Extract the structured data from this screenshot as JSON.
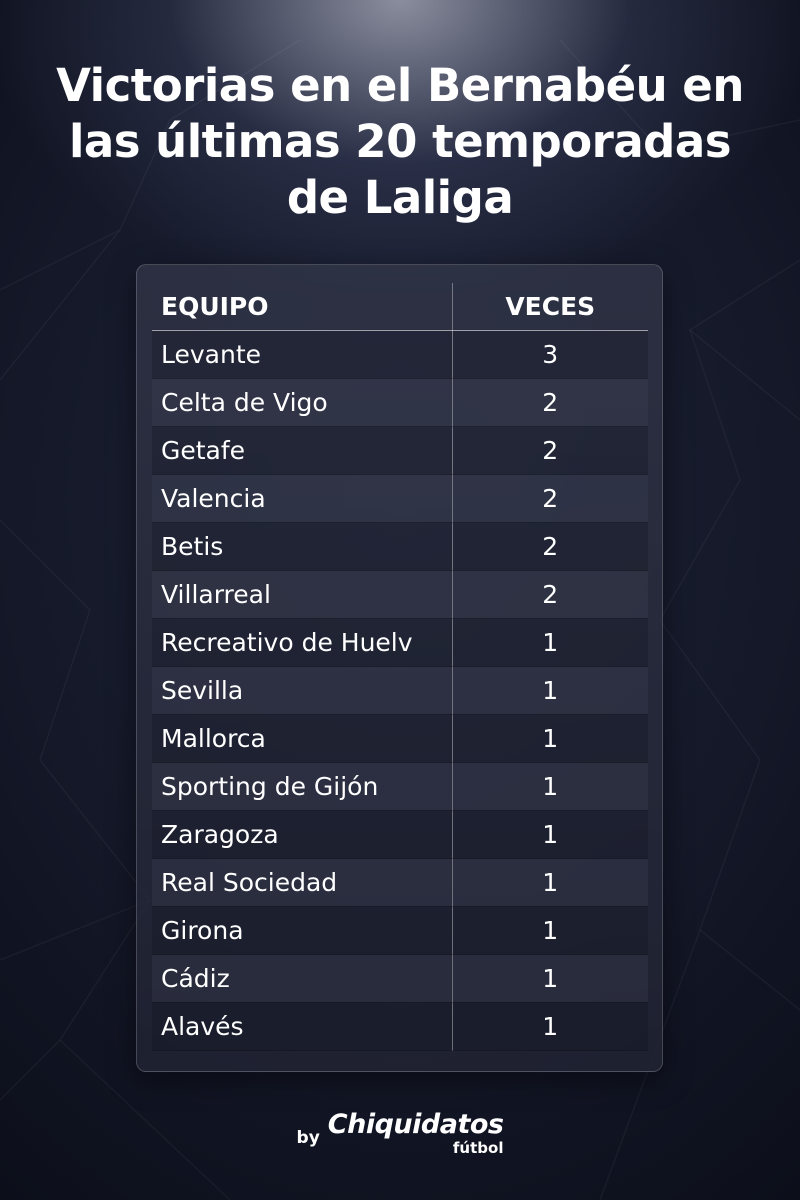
{
  "title": "Victorias en el Bernabéu en las últimas 20 temporadas de Laliga",
  "chart_data": {
    "type": "table",
    "columns": [
      "EQUIPO",
      "VECES"
    ],
    "rows": [
      {
        "team": "Levante",
        "count": 3
      },
      {
        "team": "Celta de Vigo",
        "count": 2
      },
      {
        "team": "Getafe",
        "count": 2
      },
      {
        "team": "Valencia",
        "count": 2
      },
      {
        "team": "Betis",
        "count": 2
      },
      {
        "team": "Villarreal",
        "count": 2
      },
      {
        "team": "Recreativo de Huelv",
        "count": 1
      },
      {
        "team": "Sevilla",
        "count": 1
      },
      {
        "team": "Mallorca",
        "count": 1
      },
      {
        "team": "Sporting de Gijón",
        "count": 1
      },
      {
        "team": "Zaragoza",
        "count": 1
      },
      {
        "team": "Real Sociedad",
        "count": 1
      },
      {
        "team": "Girona",
        "count": 1
      },
      {
        "team": "Cádiz",
        "count": 1
      },
      {
        "team": "Alavés",
        "count": 1
      }
    ]
  },
  "brand": {
    "by": "by",
    "name": "Chiquidatos",
    "sub": "fútbol"
  }
}
